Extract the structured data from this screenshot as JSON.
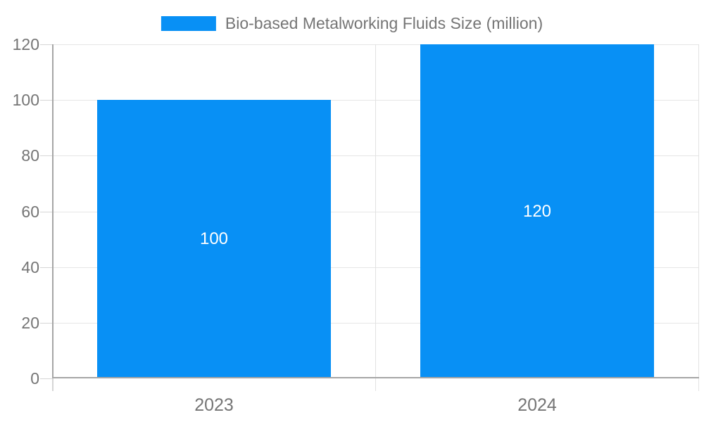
{
  "legend": {
    "label": "Bio-based Metalworking Fluids Size (million)"
  },
  "chart_data": {
    "type": "bar",
    "title": "Bio-based Metalworking Fluids Size (million)",
    "categories": [
      "2023",
      "2024"
    ],
    "series": [
      {
        "name": "Bio-based Metalworking Fluids Size (million)",
        "values": [
          100,
          120
        ]
      }
    ],
    "value_labels": [
      "100",
      "120"
    ],
    "xlabel": "",
    "ylabel": "",
    "ylim": [
      0,
      120
    ],
    "yticks": [
      0,
      20,
      40,
      60,
      80,
      100,
      120
    ],
    "grid": true,
    "legend_position": "top-center",
    "value_label_position": "inside-center",
    "colors": {
      "bar": "#0890f5",
      "value_label": "#ffffff",
      "axis_line": "#a6a6a6",
      "gridline": "#e6e6e6",
      "tick": "#d6d6d6",
      "tick_label": "#757575",
      "background": "#ffffff"
    }
  }
}
